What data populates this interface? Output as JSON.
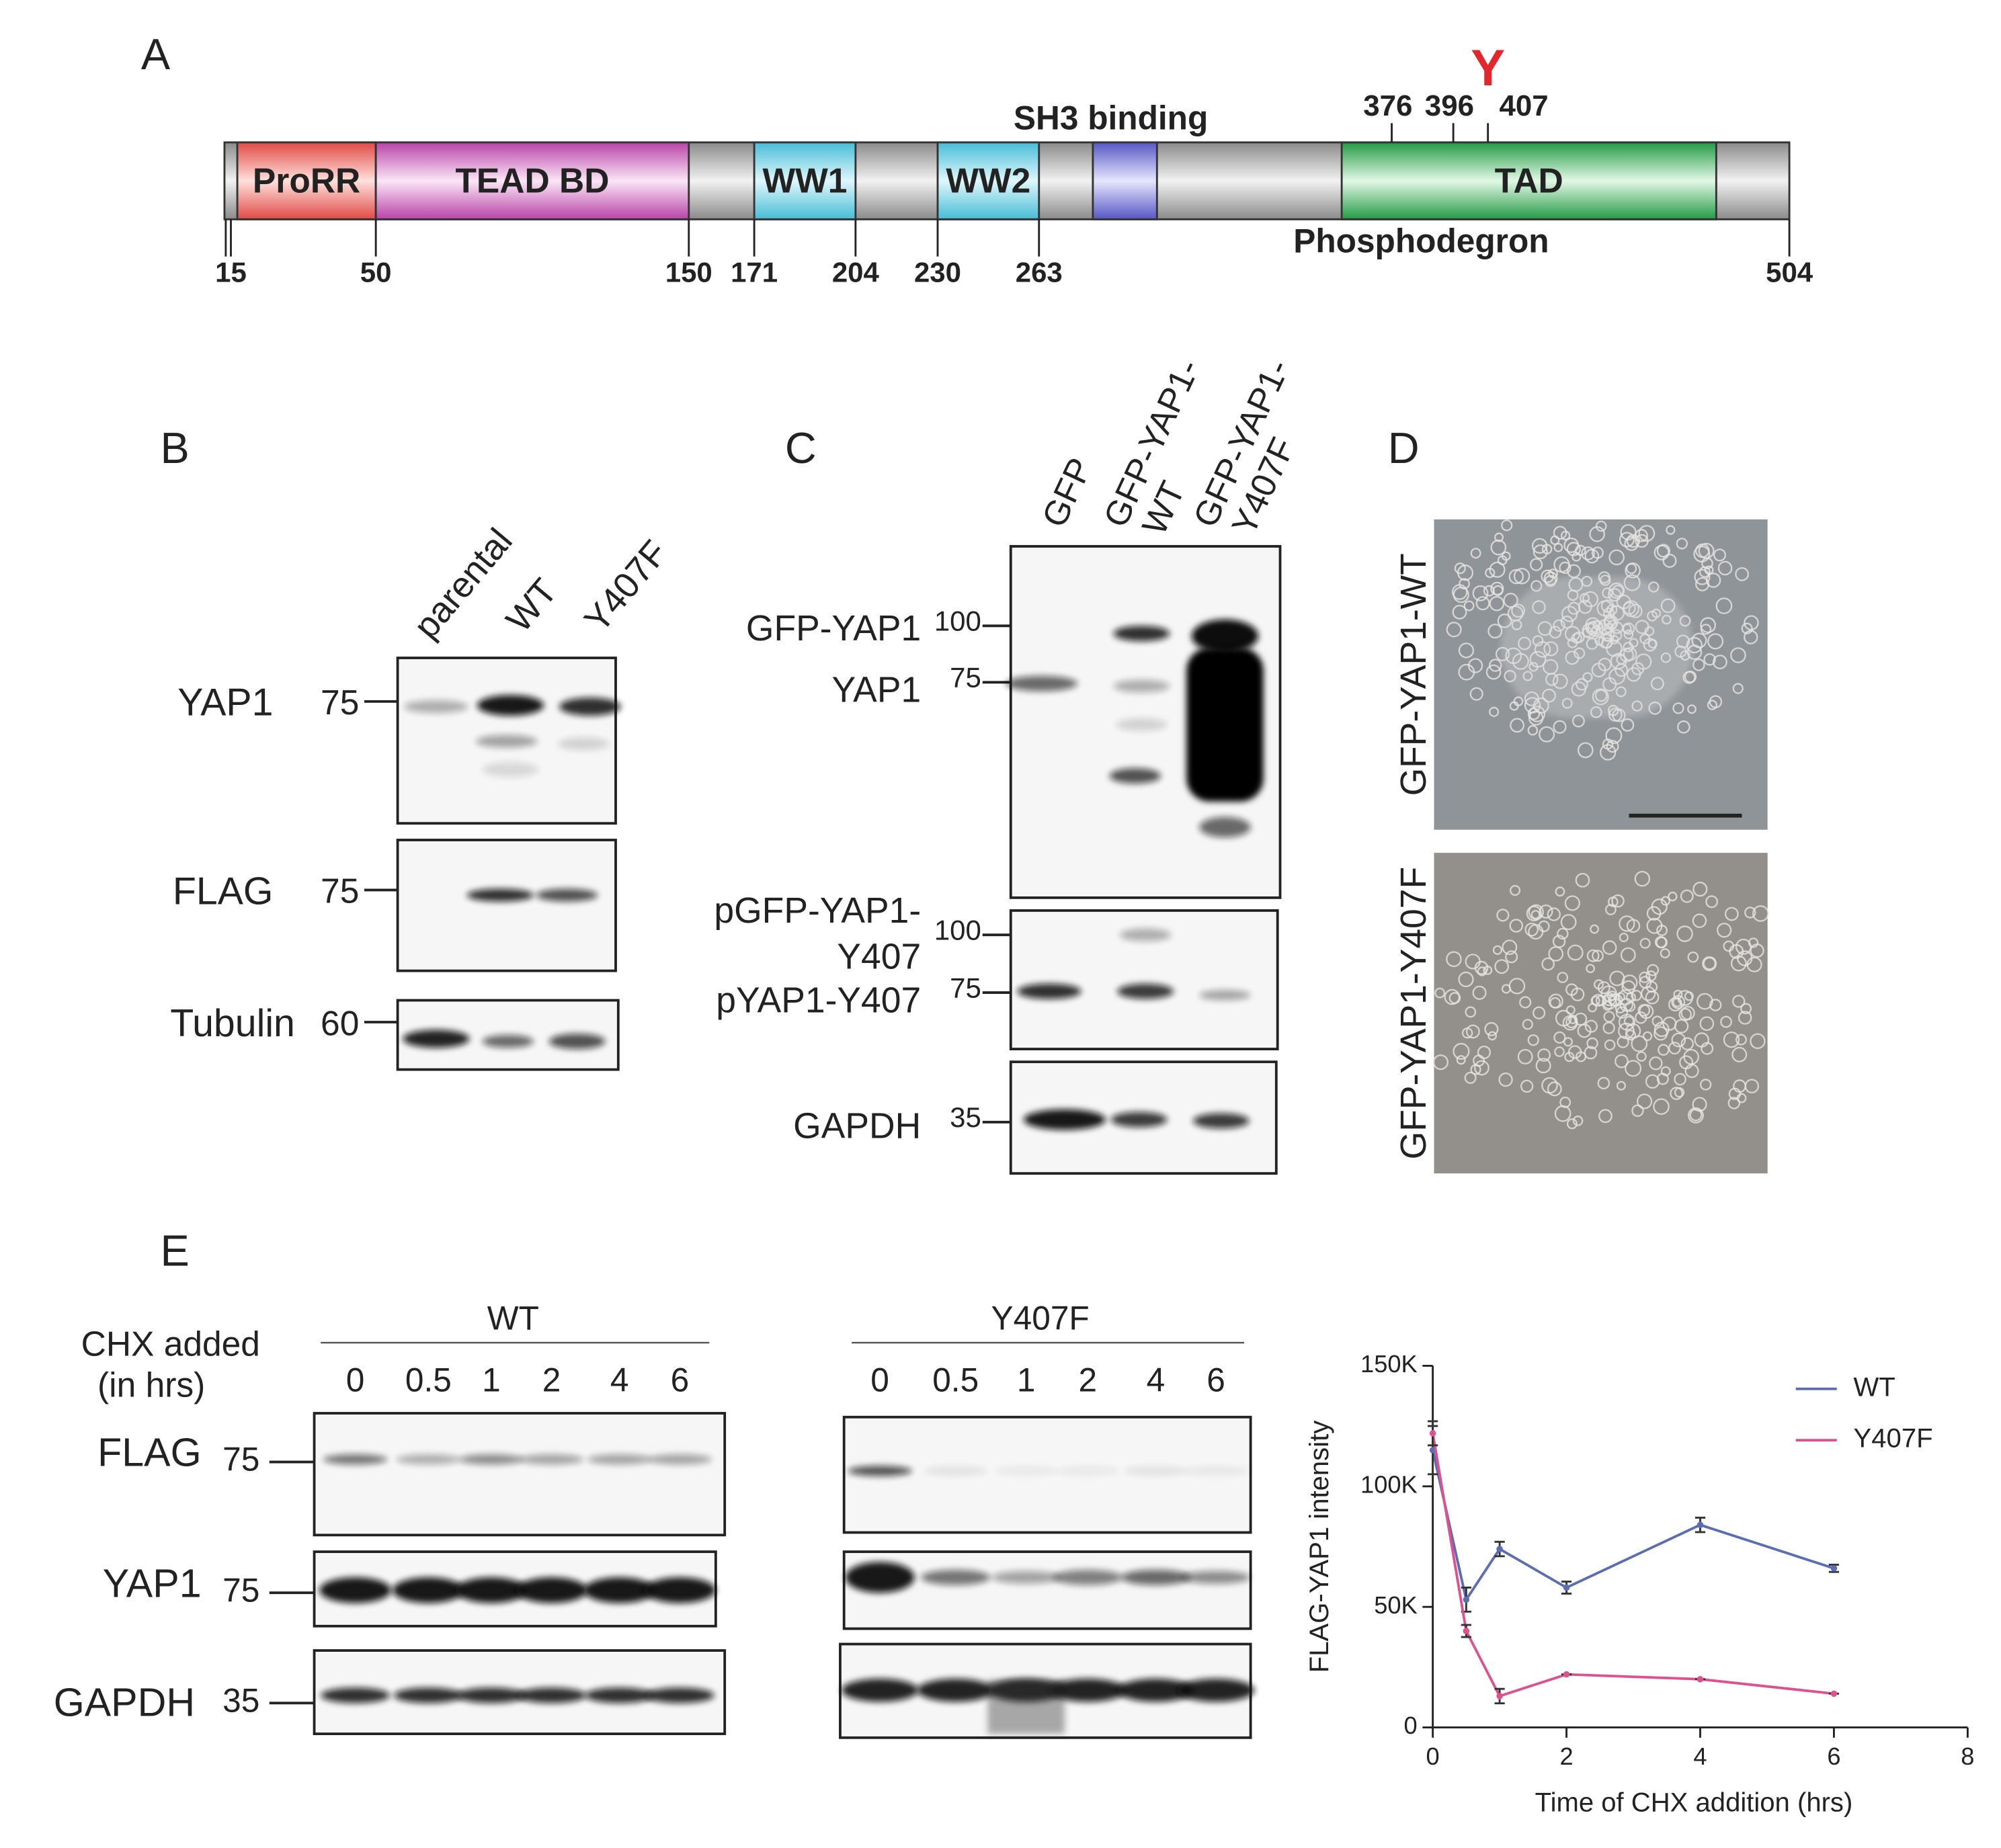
{
  "panel_labels": [
    "A",
    "B",
    "C",
    "D",
    "E"
  ],
  "domain_map": {
    "domains": [
      "ProRR",
      "TEAD BD",
      "WW1",
      "WW2",
      "TAD"
    ],
    "positions": [
      "15",
      "50",
      "150",
      "171",
      "204",
      "230",
      "263",
      "504"
    ],
    "sh3_label": "SH3 binding",
    "phosphodegron_label": "Phosphodegron",
    "site_positions": [
      "376",
      "396",
      "407"
    ],
    "site_residue": "Y"
  },
  "blot_b": {
    "lanes": [
      "parental",
      "WT",
      "Y407F"
    ],
    "rows": [
      {
        "label": "YAP1",
        "marker": "75"
      },
      {
        "label": "FLAG",
        "marker": "75"
      },
      {
        "label": "Tubulin",
        "marker": "60"
      }
    ]
  },
  "blot_c": {
    "lanes": [
      [
        "GFP"
      ],
      [
        "GFP-YAP1-",
        "WT"
      ],
      [
        "GFP-YAP1-",
        "Y407F"
      ]
    ],
    "labels": [
      "GFP-YAP1",
      "YAP1",
      "pGFP-YAP1-",
      "Y407",
      "pYAP1-Y407",
      "GAPDH"
    ],
    "markers": [
      "100",
      "75",
      "100",
      "75",
      "35"
    ]
  },
  "images_d": {
    "labels": [
      "GFP-YAP1-WT",
      "GFP-YAP1-Y407F"
    ]
  },
  "blot_e": {
    "time_label": [
      "CHX added",
      "(in hrs)"
    ],
    "groups": [
      {
        "name": "WT",
        "times": [
          0,
          0.5,
          1,
          2,
          4,
          6
        ]
      },
      {
        "name": "Y407F",
        "times": [
          0,
          0.5,
          1,
          2,
          4,
          6
        ]
      }
    ],
    "rows": [
      {
        "label": "FLAG",
        "marker": "75"
      },
      {
        "label": "YAP1",
        "marker": "75"
      },
      {
        "label": "GAPDH",
        "marker": "35"
      }
    ]
  },
  "chart_data": {
    "type": "line",
    "x_label": "Time of CHX addition (hrs)",
    "y_label": "FLAG-YAP1 intensity",
    "x": [
      0,
      0.5,
      1,
      2,
      4,
      6
    ],
    "series": [
      {
        "name": "WT",
        "color": "#5b6db3",
        "values": [
          115000,
          53000,
          74000,
          58000,
          84000,
          66000
        ],
        "errors": [
          10000,
          5000,
          3000,
          2500,
          3000,
          1500
        ]
      },
      {
        "name": "Y407F",
        "color": "#e0508f",
        "values": [
          122000,
          40000,
          13000,
          22000,
          20000,
          14000
        ],
        "errors": [
          5000,
          2500,
          3000,
          0,
          0,
          0
        ]
      }
    ],
    "xlim": [
      0,
      8
    ],
    "xticks": [
      0,
      2,
      4,
      6,
      8
    ],
    "ylim": [
      0,
      150000
    ],
    "yticks": [
      0,
      {
        "value": 50000,
        "label": "50K"
      },
      {
        "value": 100000,
        "label": "100K"
      },
      {
        "value": 150000,
        "label": "150K"
      }
    ],
    "grid": false,
    "legend": "upper right"
  }
}
